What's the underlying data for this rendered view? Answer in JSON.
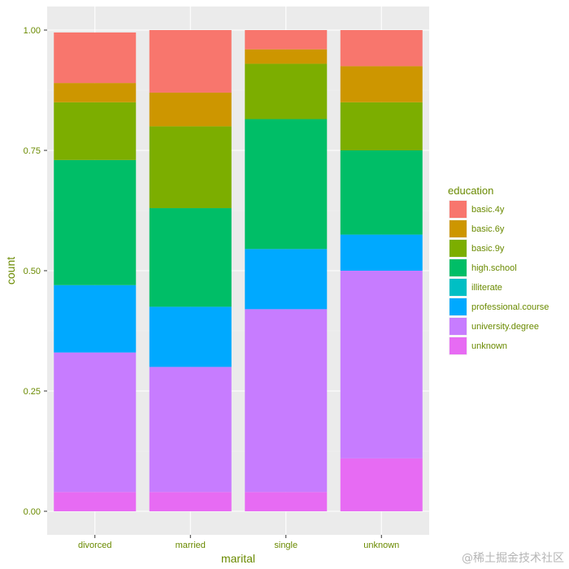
{
  "watermark": "@稀土掘金技术社区",
  "chart_data": {
    "type": "bar",
    "stacked": true,
    "position": "fill",
    "categories": [
      "divorced",
      "married",
      "single",
      "unknown"
    ],
    "xlabel": "marital",
    "ylabel": "count",
    "ylim": [
      0,
      1
    ],
    "yticks": [
      "0.00",
      "0.25",
      "0.50",
      "0.75",
      "1.00"
    ],
    "ytick_values": [
      0,
      0.25,
      0.5,
      0.75,
      1.0
    ],
    "grid": true,
    "legend": {
      "title": "education",
      "placement": "right"
    },
    "series": [
      {
        "name": "unknown",
        "color": "#E76BF3",
        "values": [
          0.04,
          0.04,
          0.04,
          0.11
        ]
      },
      {
        "name": "university.degree",
        "color": "#C77CFF",
        "values": [
          0.29,
          0.26,
          0.38,
          0.39
        ]
      },
      {
        "name": "professional.course",
        "color": "#00A9FF",
        "values": [
          0.14,
          0.125,
          0.125,
          0.075
        ]
      },
      {
        "name": "illiterate",
        "color": "#00BFC4",
        "values": [
          0.0,
          0.0,
          0.0,
          0.0
        ]
      },
      {
        "name": "high.school",
        "color": "#00BE67",
        "values": [
          0.26,
          0.205,
          0.27,
          0.175
        ]
      },
      {
        "name": "basic.9y",
        "color": "#7CAE00",
        "values": [
          0.12,
          0.17,
          0.115,
          0.1
        ]
      },
      {
        "name": "basic.6y",
        "color": "#CD9600",
        "values": [
          0.04,
          0.07,
          0.03,
          0.075
        ]
      },
      {
        "name": "basic.4y",
        "color": "#F8766D",
        "values": [
          0.105,
          0.13,
          0.04,
          0.075
        ]
      }
    ],
    "legend_order": [
      "basic.4y",
      "basic.6y",
      "basic.9y",
      "high.school",
      "illiterate",
      "professional.course",
      "university.degree",
      "unknown"
    ]
  }
}
